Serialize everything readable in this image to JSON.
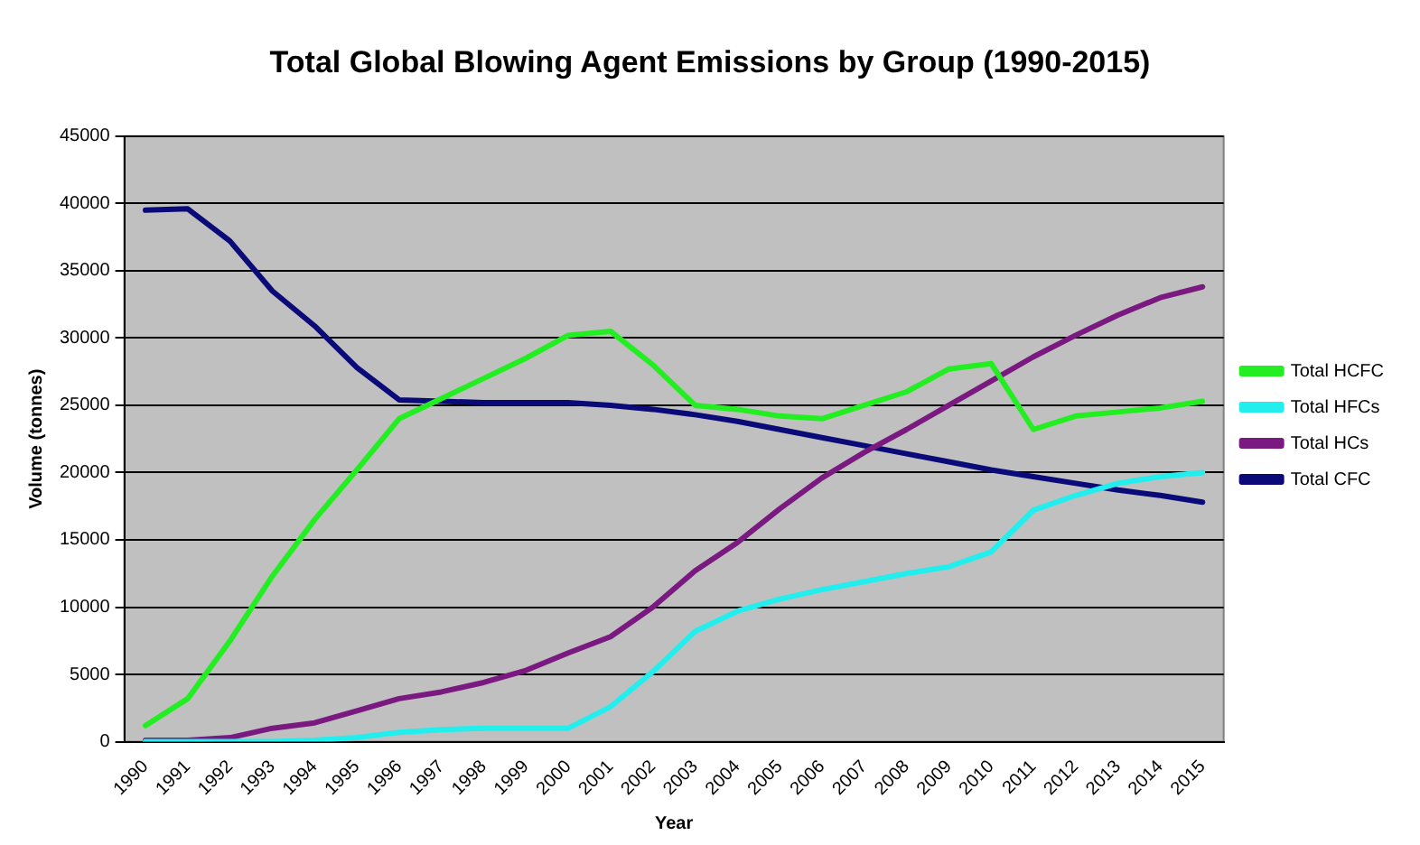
{
  "chart_data": {
    "type": "line",
    "title": "Total Global Blowing Agent Emissions by Group (1990-2015)",
    "xlabel": "Year",
    "ylabel": "Volume (tonnes)",
    "categories": [
      "1990",
      "1991",
      "1992",
      "1993",
      "1994",
      "1995",
      "1996",
      "1997",
      "1998",
      "1999",
      "2000",
      "2001",
      "2002",
      "2003",
      "2004",
      "2005",
      "2006",
      "2007",
      "2008",
      "2009",
      "2010",
      "2011",
      "2012",
      "2013",
      "2014",
      "2015"
    ],
    "series": [
      {
        "name": "Total HCFC",
        "color": "#22ee22",
        "values": [
          1200,
          3200,
          7500,
          12300,
          16500,
          20200,
          24000,
          25500,
          27000,
          28500,
          30200,
          30500,
          28000,
          25000,
          24700,
          24200,
          24000,
          25000,
          26000,
          27700,
          28100,
          23200,
          24200,
          24500,
          24800,
          25300
        ]
      },
      {
        "name": "Total HFCs",
        "color": "#22eeee",
        "values": [
          0,
          0,
          0,
          0,
          100,
          300,
          700,
          900,
          1000,
          1000,
          1000,
          2600,
          5200,
          8200,
          9700,
          10600,
          11300,
          11900,
          12500,
          13000,
          14100,
          17200,
          18300,
          19200,
          19700,
          20000
        ]
      },
      {
        "name": "Total HCs",
        "color": "#7a1a80",
        "values": [
          100,
          100,
          300,
          1000,
          1400,
          2300,
          3200,
          3700,
          4400,
          5300,
          6600,
          7800,
          10000,
          12700,
          14800,
          17300,
          19600,
          21500,
          23200,
          25000,
          26800,
          28600,
          30200,
          31700,
          33000,
          33800
        ]
      },
      {
        "name": "Total CFC",
        "color": "#0a0a78",
        "values": [
          39500,
          39600,
          37200,
          33500,
          30900,
          27800,
          25400,
          25300,
          25200,
          25200,
          25200,
          25000,
          24700,
          24300,
          23800,
          23200,
          22600,
          22000,
          21400,
          20800,
          20200,
          19700,
          19200,
          18700,
          18300,
          17800
        ]
      }
    ],
    "ylim": [
      0,
      45000
    ],
    "yticks": [
      0,
      5000,
      10000,
      15000,
      20000,
      25000,
      30000,
      35000,
      40000,
      45000
    ],
    "grid": "y",
    "legend": "right",
    "marker": "none",
    "line_style": "solid"
  }
}
